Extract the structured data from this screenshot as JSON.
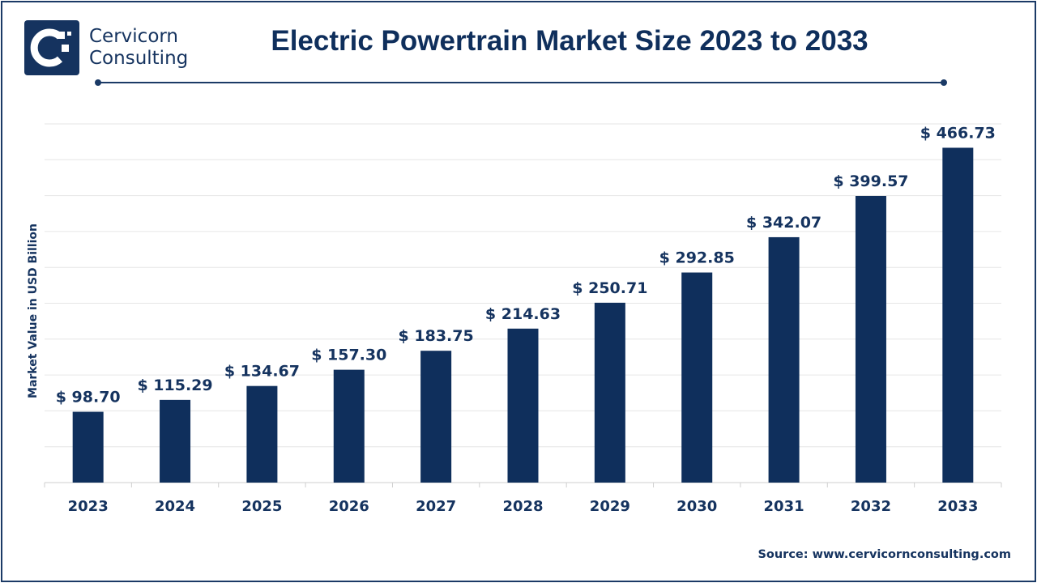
{
  "brand": {
    "line1": "Cervicorn",
    "line2": "Consulting"
  },
  "source_text": "Source: www.cervicornconsulting.com",
  "colors": {
    "bar": "#0f2f5c",
    "text": "#15335f",
    "grid": "#e6e6e6"
  },
  "chart_data": {
    "type": "bar",
    "title": "Electric Powertrain Market Size 2023 to 2033",
    "xlabel": "",
    "ylabel": "Market Value in USD Billion",
    "categories": [
      "2023",
      "2024",
      "2025",
      "2026",
      "2027",
      "2028",
      "2029",
      "2030",
      "2031",
      "2032",
      "2033"
    ],
    "values": [
      98.7,
      115.29,
      134.67,
      157.3,
      183.75,
      214.63,
      250.71,
      292.85,
      342.07,
      399.57,
      466.73
    ],
    "data_labels": [
      "$ 98.70",
      "$ 115.29",
      "$ 134.67",
      "$ 157.30",
      "$ 183.75",
      "$ 214.63",
      "$ 250.71",
      "$ 292.85",
      "$ 342.07",
      "$ 399.57",
      "$ 466.73"
    ],
    "ylim": [
      0,
      500
    ],
    "grid": true,
    "legend": "none"
  }
}
